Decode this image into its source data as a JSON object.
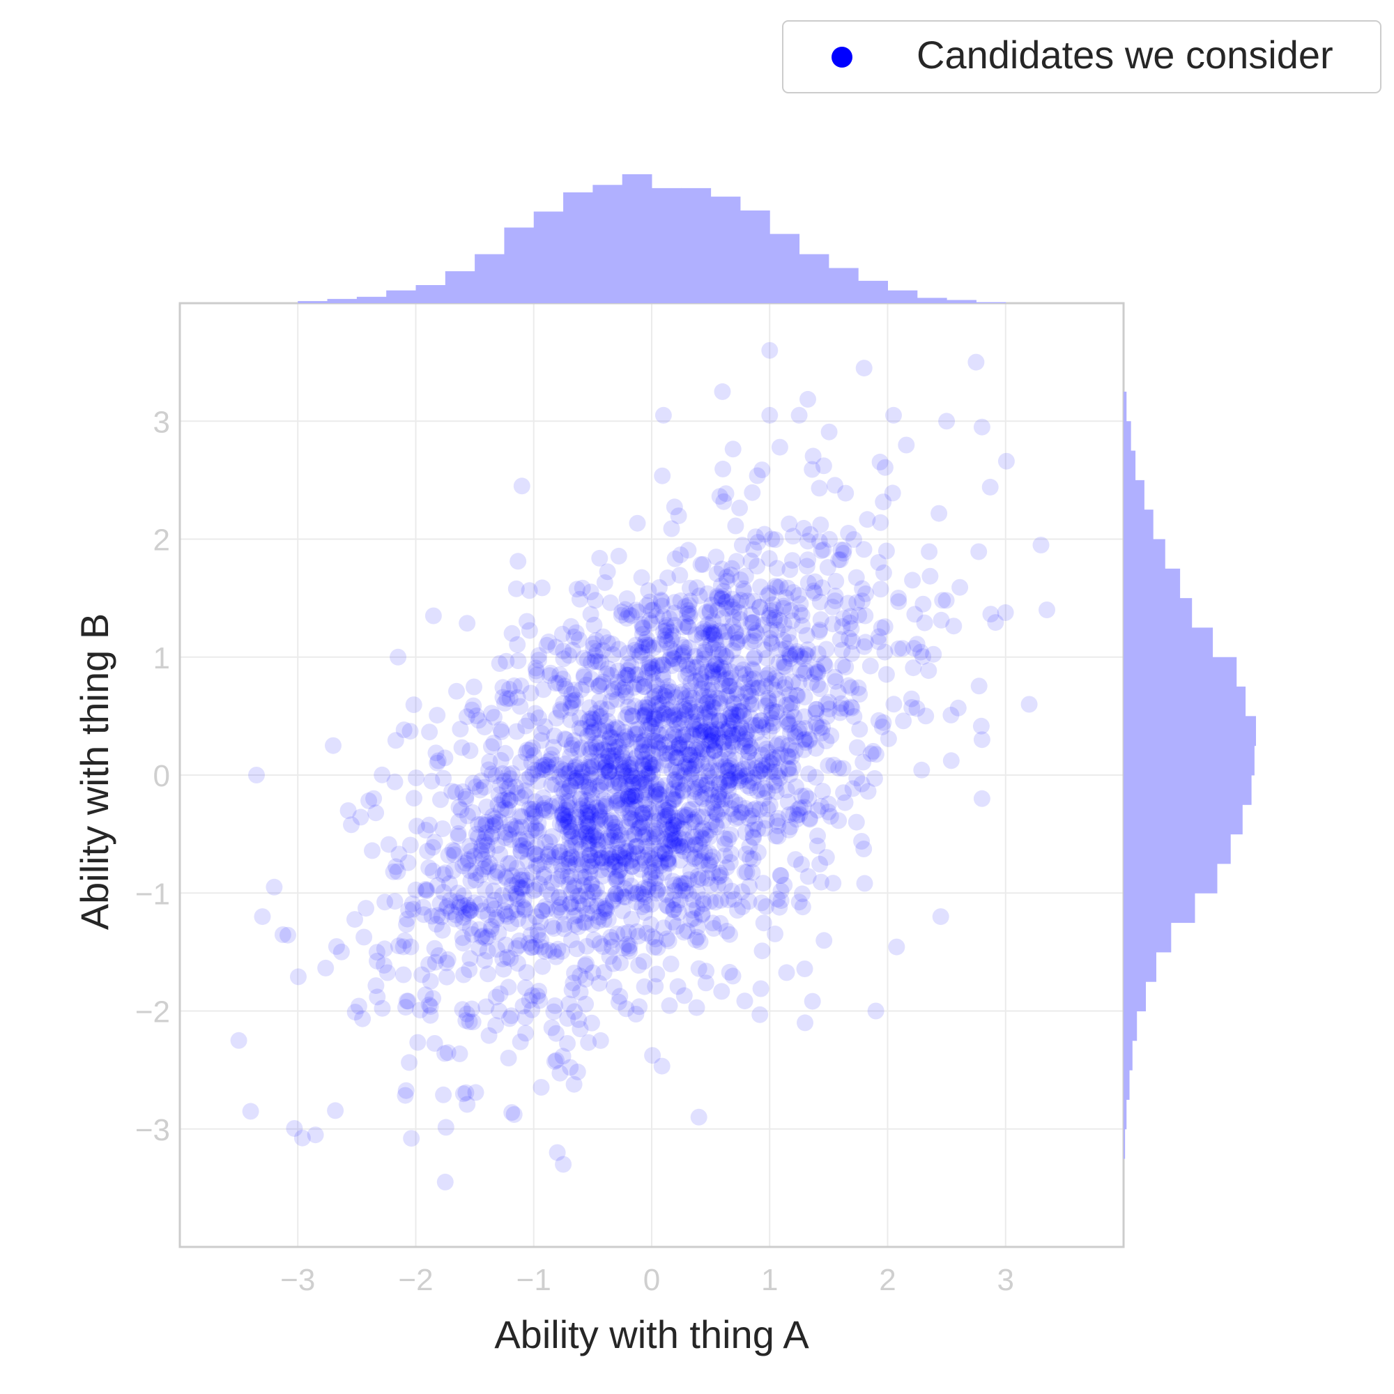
{
  "chart_data": {
    "type": "scatter",
    "title": "",
    "xlabel": "Ability with thing A",
    "ylabel": "Ability with thing B",
    "xlim": [
      -4,
      4
    ],
    "ylim": [
      -4,
      4
    ],
    "xticks": [
      -3,
      -2,
      -1,
      0,
      1,
      2,
      3
    ],
    "yticks": [
      -3,
      -2,
      -1,
      0,
      1,
      2,
      3
    ],
    "xtick_labels": [
      "−3",
      "−2",
      "−1",
      "0",
      "1",
      "2",
      "3"
    ],
    "ytick_labels": [
      "−3",
      "−2",
      "−1",
      "0",
      "1",
      "2",
      "3"
    ],
    "grid": true,
    "legend_position": "top-right",
    "series": [
      {
        "name": "Candidates we consider",
        "color": "#0000ff",
        "alpha": 0.12,
        "marker": "circle",
        "n_points": 2500,
        "distribution": "bivariate normal, mean (0, 0), sd 1, correlation about 0.5",
        "outlier_points": [
          [
            1.0,
            3.6
          ],
          [
            1.8,
            3.45
          ],
          [
            2.75,
            3.5
          ],
          [
            0.6,
            3.25
          ],
          [
            0.1,
            3.05
          ],
          [
            1.0,
            3.05
          ],
          [
            1.25,
            3.05
          ],
          [
            2.05,
            3.05
          ],
          [
            2.5,
            3.0
          ],
          [
            2.8,
            2.95
          ],
          [
            -1.1,
            2.45
          ],
          [
            3.3,
            1.95
          ],
          [
            3.35,
            1.4
          ],
          [
            3.2,
            0.6
          ],
          [
            2.8,
            0.3
          ],
          [
            -3.35,
            0.0
          ],
          [
            -2.7,
            0.25
          ],
          [
            -3.2,
            -0.95
          ],
          [
            -3.3,
            -1.2
          ],
          [
            -3.5,
            -2.25
          ],
          [
            -3.4,
            -2.85
          ],
          [
            -2.85,
            -3.05
          ],
          [
            -1.75,
            -3.45
          ],
          [
            -0.8,
            -3.2
          ],
          [
            -0.75,
            -3.3
          ],
          [
            0.4,
            -2.9
          ],
          [
            1.3,
            -2.1
          ],
          [
            1.9,
            -2.0
          ],
          [
            2.45,
            -1.2
          ],
          [
            2.8,
            -0.2
          ],
          [
            -1.85,
            1.35
          ],
          [
            -2.15,
            1.0
          ]
        ]
      }
    ],
    "marginal_x": {
      "type": "histogram",
      "color": "#b0b0ff",
      "bin_edges": [
        -3.0,
        -2.75,
        -2.5,
        -2.25,
        -2.0,
        -1.75,
        -1.5,
        -1.25,
        -1.0,
        -0.75,
        -0.5,
        -0.25,
        0.0,
        0.25,
        0.5,
        0.75,
        1.0,
        1.25,
        1.5,
        1.75,
        2.0,
        2.25,
        2.5,
        2.75,
        3.0
      ],
      "counts": [
        2,
        4,
        6,
        12,
        17,
        30,
        46,
        71,
        86,
        104,
        111,
        121,
        108,
        108,
        100,
        87,
        65,
        46,
        33,
        21,
        12,
        5,
        3,
        1
      ]
    },
    "marginal_y": {
      "type": "histogram",
      "color": "#b0b0ff",
      "bin_edges": [
        -3.25,
        -3.0,
        -2.75,
        -2.5,
        -2.25,
        -2.0,
        -1.75,
        -1.5,
        -1.25,
        -1.0,
        -0.75,
        -0.5,
        -0.25,
        0.0,
        0.25,
        0.5,
        0.75,
        1.0,
        1.25,
        1.5,
        1.75,
        2.0,
        2.25,
        2.5,
        2.75,
        3.0,
        3.25
      ],
      "counts": [
        1,
        2,
        4,
        6,
        9,
        15,
        22,
        32,
        48,
        63,
        72,
        80,
        86,
        88,
        89,
        82,
        76,
        60,
        46,
        38,
        28,
        20,
        14,
        8,
        5,
        2
      ]
    }
  }
}
